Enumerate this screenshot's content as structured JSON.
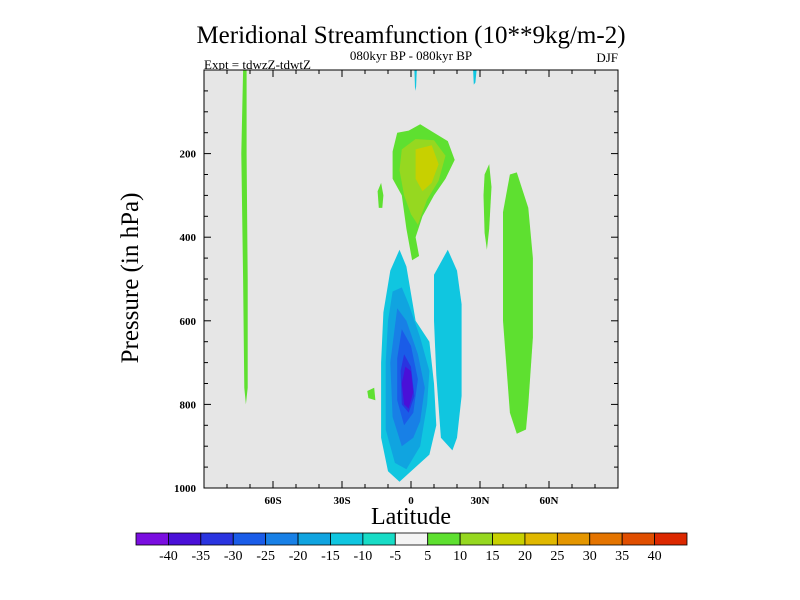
{
  "chart_data": {
    "type": "contourf",
    "title": "Meridional Streamfunction (10**9kg/m-2)",
    "subtitle_center": "080kyr BP - 080kyr BP",
    "subtitle_left": "Expt = tdwzZ-tdwtZ",
    "subtitle_right": "DJF",
    "xlabel": "Latitude",
    "ylabel": "Pressure (in hPa)",
    "xlim": [
      -90,
      90
    ],
    "ylim": [
      1000,
      0
    ],
    "x_ticks": [
      {
        "value": -60,
        "label": "60S"
      },
      {
        "value": -30,
        "label": "30S"
      },
      {
        "value": 0,
        "label": "0"
      },
      {
        "value": 30,
        "label": "30N"
      },
      {
        "value": 60,
        "label": "60N"
      }
    ],
    "y_ticks": [
      {
        "value": 200,
        "label": "200"
      },
      {
        "value": 400,
        "label": "400"
      },
      {
        "value": 600,
        "label": "600"
      },
      {
        "value": 800,
        "label": "800"
      },
      {
        "value": 1000,
        "label": "1000"
      }
    ],
    "background_color": "#e6e6e6",
    "colorbar": {
      "colors": [
        "#7a0ee0",
        "#4a10d8",
        "#2a34e0",
        "#1a5ce8",
        "#1880e6",
        "#10a4e0",
        "#10c6e0",
        "#18dcc6",
        "#f4f4f4",
        "#5ee030",
        "#96d820",
        "#c8d000",
        "#e0b800",
        "#e49600",
        "#e47400",
        "#e04e00",
        "#dc2800"
      ],
      "labels": [
        "-40",
        "-35",
        "-30",
        "-25",
        "-20",
        "-15",
        "-10",
        "-5",
        "5",
        "10",
        "15",
        "20",
        "25",
        "30",
        "35",
        "40"
      ]
    },
    "regions": [
      {
        "name": "green-strip-60s",
        "level": 5,
        "polygon": [
          [
            -73,
            0
          ],
          [
            -71.5,
            0
          ],
          [
            -71.5,
            200
          ],
          [
            -71,
            500
          ],
          [
            -71,
            760
          ],
          [
            -71.8,
            800
          ],
          [
            -72.5,
            760
          ],
          [
            -73,
            500
          ],
          [
            -73.8,
            200
          ]
        ]
      },
      {
        "name": "green-dot-32s",
        "level": 5,
        "polygon": [
          [
            -14.5,
            290
          ],
          [
            -13,
            270
          ],
          [
            -12,
            300
          ],
          [
            -12.5,
            330
          ],
          [
            -14,
            330
          ]
        ]
      },
      {
        "name": "green-dot-40s",
        "level": 5,
        "polygon": [
          [
            -19,
            768
          ],
          [
            -16,
            760
          ],
          [
            -15.5,
            790
          ],
          [
            -18.5,
            785
          ]
        ]
      },
      {
        "name": "teal-top-0",
        "level": -5,
        "polygon": [
          [
            1.5,
            0
          ],
          [
            2.5,
            0
          ],
          [
            2.2,
            40
          ],
          [
            1.8,
            50
          ]
        ]
      },
      {
        "name": "teal-top-27n",
        "level": -5,
        "polygon": [
          [
            27,
            0
          ],
          [
            28.5,
            0
          ],
          [
            28,
            30
          ],
          [
            27.3,
            35
          ]
        ]
      },
      {
        "name": "green-upper-cell",
        "level": 5,
        "polygon": [
          [
            -8,
            195
          ],
          [
            -6,
            150
          ],
          [
            -1,
            145
          ],
          [
            4,
            130
          ],
          [
            10,
            150
          ],
          [
            16,
            170
          ],
          [
            19,
            215
          ],
          [
            15,
            260
          ],
          [
            10,
            300
          ],
          [
            5,
            350
          ],
          [
            2,
            400
          ],
          [
            3.5,
            445
          ],
          [
            0.5,
            455
          ],
          [
            -2,
            380
          ],
          [
            -4,
            300
          ],
          [
            -8,
            260
          ]
        ]
      },
      {
        "name": "olive-upper-cell",
        "level": 10,
        "polygon": [
          [
            -4,
            190
          ],
          [
            2,
            165
          ],
          [
            10,
            168
          ],
          [
            15,
            205
          ],
          [
            12,
            265
          ],
          [
            7,
            310
          ],
          [
            3,
            370
          ],
          [
            0,
            345
          ],
          [
            -3,
            300
          ],
          [
            -5,
            240
          ]
        ]
      },
      {
        "name": "yellow-upper-core",
        "level": 15,
        "polygon": [
          [
            2,
            190
          ],
          [
            9,
            180
          ],
          [
            12,
            225
          ],
          [
            9,
            270
          ],
          [
            5,
            290
          ],
          [
            2,
            260
          ]
        ]
      },
      {
        "name": "green-strip-32n",
        "level": 5,
        "polygon": [
          [
            32,
            250
          ],
          [
            34,
            225
          ],
          [
            35,
            280
          ],
          [
            34,
            380
          ],
          [
            33,
            430
          ],
          [
            32,
            390
          ],
          [
            31.5,
            300
          ]
        ]
      },
      {
        "name": "green-cell-45n",
        "level": 5,
        "polygon": [
          [
            40,
            340
          ],
          [
            43,
            250
          ],
          [
            46,
            245
          ],
          [
            51,
            330
          ],
          [
            53,
            450
          ],
          [
            53,
            640
          ],
          [
            51,
            800
          ],
          [
            50,
            860
          ],
          [
            46,
            870
          ],
          [
            43,
            820
          ],
          [
            40,
            600
          ],
          [
            40,
            400
          ]
        ]
      },
      {
        "name": "teal-cell-15n",
        "level": -5,
        "polygon": [
          [
            10,
            490
          ],
          [
            16,
            430
          ],
          [
            20,
            480
          ],
          [
            22,
            560
          ],
          [
            22,
            780
          ],
          [
            20,
            880
          ],
          [
            18,
            910
          ],
          [
            13,
            880
          ],
          [
            11,
            730
          ],
          [
            10,
            600
          ]
        ]
      },
      {
        "name": "teal-cell-0",
        "level": -5,
        "polygon": [
          [
            -9,
            480
          ],
          [
            -5,
            430
          ],
          [
            -2,
            470
          ],
          [
            2,
            600
          ],
          [
            8,
            650
          ],
          [
            10,
            750
          ],
          [
            11,
            850
          ],
          [
            8,
            920
          ],
          [
            2,
            950
          ],
          [
            -5,
            985
          ],
          [
            -10,
            960
          ],
          [
            -13,
            880
          ],
          [
            -13,
            700
          ],
          [
            -12,
            580
          ]
        ]
      },
      {
        "name": "blue10-cell",
        "level": -10,
        "polygon": [
          [
            -8,
            530
          ],
          [
            -4,
            520
          ],
          [
            -1,
            560
          ],
          [
            4,
            640
          ],
          [
            8,
            720
          ],
          [
            7,
            800
          ],
          [
            4,
            900
          ],
          [
            -2,
            955
          ],
          [
            -7,
            940
          ],
          [
            -11,
            860
          ],
          [
            -11,
            700
          ],
          [
            -10,
            600
          ]
        ]
      },
      {
        "name": "blue15-cell",
        "level": -15,
        "polygon": [
          [
            -6,
            570
          ],
          [
            -2,
            600
          ],
          [
            3,
            680
          ],
          [
            6,
            760
          ],
          [
            4,
            840
          ],
          [
            1,
            880
          ],
          [
            -4,
            900
          ],
          [
            -8,
            830
          ],
          [
            -9,
            700
          ]
        ]
      },
      {
        "name": "blue20-cell",
        "level": -20,
        "polygon": [
          [
            -4,
            620
          ],
          [
            0,
            660
          ],
          [
            3,
            740
          ],
          [
            1,
            820
          ],
          [
            -3,
            850
          ],
          [
            -6,
            790
          ],
          [
            -6,
            690
          ]
        ]
      },
      {
        "name": "blue25-cell",
        "level": -25,
        "polygon": [
          [
            -3,
            680
          ],
          [
            0,
            710
          ],
          [
            1.5,
            780
          ],
          [
            -1,
            820
          ],
          [
            -4,
            800
          ],
          [
            -4.5,
            720
          ]
        ]
      },
      {
        "name": "blue30-core",
        "level": -30,
        "polygon": [
          [
            -2.5,
            710
          ],
          [
            0,
            720
          ],
          [
            1,
            770
          ],
          [
            -1,
            810
          ],
          [
            -3,
            800
          ],
          [
            -4,
            750
          ]
        ]
      }
    ]
  }
}
